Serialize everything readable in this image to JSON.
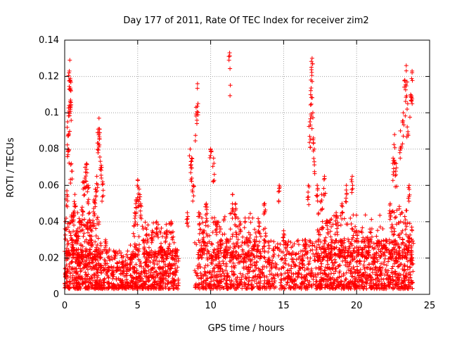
{
  "chart_data": {
    "type": "scatter",
    "title": "Day 177 of 2011, Rate Of TEC Index for receiver zim2",
    "xlabel": "GPS time / hours",
    "ylabel": "ROTI / TECUs",
    "xlim": [
      0,
      25
    ],
    "ylim": [
      0,
      0.14
    ],
    "xticks": [
      0,
      5,
      10,
      15,
      20,
      25
    ],
    "xtick_labels": [
      "0",
      "5",
      "10",
      "15",
      "20",
      "25"
    ],
    "yticks": [
      0,
      0.02,
      0.04,
      0.06,
      0.08,
      0.1,
      0.12,
      0.14
    ],
    "ytick_labels": [
      "0",
      "0.02",
      "0.04",
      "0.06",
      "0.08",
      "0.1",
      "0.12",
      "0.14"
    ],
    "grid": true,
    "marker": "plus",
    "color": "#ff0000",
    "series": [
      {
        "name": "ROTI",
        "points": [
          [
            0.1,
            0.012
          ],
          [
            0.15,
            0.057
          ],
          [
            0.2,
            0.095
          ],
          [
            0.25,
            0.088
          ],
          [
            0.3,
            0.104
          ],
          [
            0.32,
            0.123
          ],
          [
            0.35,
            0.129
          ],
          [
            0.38,
            0.118
          ],
          [
            0.4,
            0.107
          ],
          [
            0.45,
            0.072
          ],
          [
            0.5,
            0.03
          ],
          [
            0.6,
            0.045
          ],
          [
            0.7,
            0.055
          ],
          [
            0.8,
            0.035
          ],
          [
            0.9,
            0.02
          ],
          [
            1.0,
            0.018
          ],
          [
            1.1,
            0.04
          ],
          [
            1.2,
            0.048
          ],
          [
            1.3,
            0.062
          ],
          [
            1.4,
            0.07
          ],
          [
            1.5,
            0.072
          ],
          [
            1.6,
            0.06
          ],
          [
            1.7,
            0.045
          ],
          [
            1.8,
            0.03
          ],
          [
            1.9,
            0.02
          ],
          [
            2.0,
            0.052
          ],
          [
            2.1,
            0.058
          ],
          [
            2.2,
            0.065
          ],
          [
            2.3,
            0.091
          ],
          [
            2.35,
            0.097
          ],
          [
            2.4,
            0.089
          ],
          [
            2.5,
            0.071
          ],
          [
            2.6,
            0.062
          ],
          [
            2.8,
            0.03
          ],
          [
            3.0,
            0.015
          ],
          [
            3.3,
            0.012
          ],
          [
            3.6,
            0.015
          ],
          [
            4.0,
            0.018
          ],
          [
            4.5,
            0.02
          ],
          [
            4.8,
            0.045
          ],
          [
            4.9,
            0.052
          ],
          [
            5.0,
            0.063
          ],
          [
            5.1,
            0.058
          ],
          [
            5.2,
            0.05
          ],
          [
            5.4,
            0.03
          ],
          [
            5.6,
            0.02
          ],
          [
            6.0,
            0.035
          ],
          [
            6.3,
            0.04
          ],
          [
            6.6,
            0.028
          ],
          [
            7.0,
            0.035
          ],
          [
            7.3,
            0.04
          ],
          [
            7.6,
            0.025
          ],
          [
            8.4,
            0.045
          ],
          [
            8.6,
            0.08
          ],
          [
            8.7,
            0.075
          ],
          [
            8.8,
            0.06
          ],
          [
            9.0,
            0.103
          ],
          [
            9.1,
            0.116
          ],
          [
            9.2,
            0.045
          ],
          [
            9.5,
            0.035
          ],
          [
            9.7,
            0.05
          ],
          [
            10.0,
            0.08
          ],
          [
            10.2,
            0.075
          ],
          [
            10.4,
            0.04
          ],
          [
            10.7,
            0.03
          ],
          [
            11.0,
            0.025
          ],
          [
            11.3,
            0.133
          ],
          [
            11.5,
            0.055
          ],
          [
            11.7,
            0.05
          ],
          [
            12.0,
            0.04
          ],
          [
            12.3,
            0.02
          ],
          [
            12.6,
            0.015
          ],
          [
            13.0,
            0.03
          ],
          [
            13.3,
            0.04
          ],
          [
            13.7,
            0.05
          ],
          [
            14.0,
            0.02
          ],
          [
            14.3,
            0.025
          ],
          [
            14.7,
            0.06
          ],
          [
            15.0,
            0.035
          ],
          [
            15.3,
            0.01
          ],
          [
            15.6,
            0.008
          ],
          [
            16.0,
            0.012
          ],
          [
            16.3,
            0.02
          ],
          [
            16.5,
            0.03
          ],
          [
            16.7,
            0.06
          ],
          [
            16.8,
            0.095
          ],
          [
            16.85,
            0.11
          ],
          [
            16.9,
            0.125
          ],
          [
            16.95,
            0.13
          ],
          [
            17.0,
            0.1
          ],
          [
            17.1,
            0.08
          ],
          [
            17.3,
            0.06
          ],
          [
            17.6,
            0.055
          ],
          [
            17.8,
            0.065
          ],
          [
            18.0,
            0.04
          ],
          [
            18.3,
            0.03
          ],
          [
            18.6,
            0.045
          ],
          [
            19.0,
            0.05
          ],
          [
            19.3,
            0.06
          ],
          [
            19.7,
            0.065
          ],
          [
            20.0,
            0.035
          ],
          [
            20.4,
            0.025
          ],
          [
            20.8,
            0.03
          ],
          [
            21.2,
            0.02
          ],
          [
            21.6,
            0.015
          ],
          [
            22.0,
            0.03
          ],
          [
            22.3,
            0.05
          ],
          [
            22.5,
            0.075
          ],
          [
            22.6,
            0.088
          ],
          [
            22.7,
            0.072
          ],
          [
            23.0,
            0.09
          ],
          [
            23.2,
            0.1
          ],
          [
            23.3,
            0.118
          ],
          [
            23.4,
            0.126
          ],
          [
            23.5,
            0.105
          ],
          [
            23.6,
            0.06
          ],
          [
            23.7,
            0.11
          ],
          [
            23.8,
            0.123
          ],
          [
            23.8,
            0.02
          ],
          [
            0.3,
            0.004
          ],
          [
            15.5,
            0.004
          ],
          [
            3.0,
            0.004
          ],
          [
            7.5,
            0.008
          ],
          [
            12.0,
            0.006
          ],
          [
            18.0,
            0.005
          ],
          [
            21.0,
            0.004
          ]
        ],
        "baseline_bands": [
          {
            "x_range": [
              0,
              7.8
            ],
            "y_range": [
              0.003,
              0.025
            ],
            "count": 900
          },
          {
            "x_range": [
              8.9,
              16.2
            ],
            "y_range": [
              0.003,
              0.03
            ],
            "count": 650
          },
          {
            "x_range": [
              16.2,
              23.9
            ],
            "y_range": [
              0.003,
              0.03
            ],
            "count": 850
          },
          {
            "x_range": [
              0,
              2.5
            ],
            "y_range": [
              0.02,
              0.045
            ],
            "count": 180
          },
          {
            "x_range": [
              9.2,
              13.8
            ],
            "y_range": [
              0.02,
              0.045
            ],
            "count": 160
          },
          {
            "x_range": [
              17.3,
              21.8
            ],
            "y_range": [
              0.02,
              0.045
            ],
            "count": 170
          },
          {
            "x_range": [
              22.2,
              23.8
            ],
            "y_range": [
              0.02,
              0.05
            ],
            "count": 120
          },
          {
            "x_range": [
              4.5,
              7.5
            ],
            "y_range": [
              0.02,
              0.04
            ],
            "count": 90
          }
        ]
      }
    ]
  }
}
